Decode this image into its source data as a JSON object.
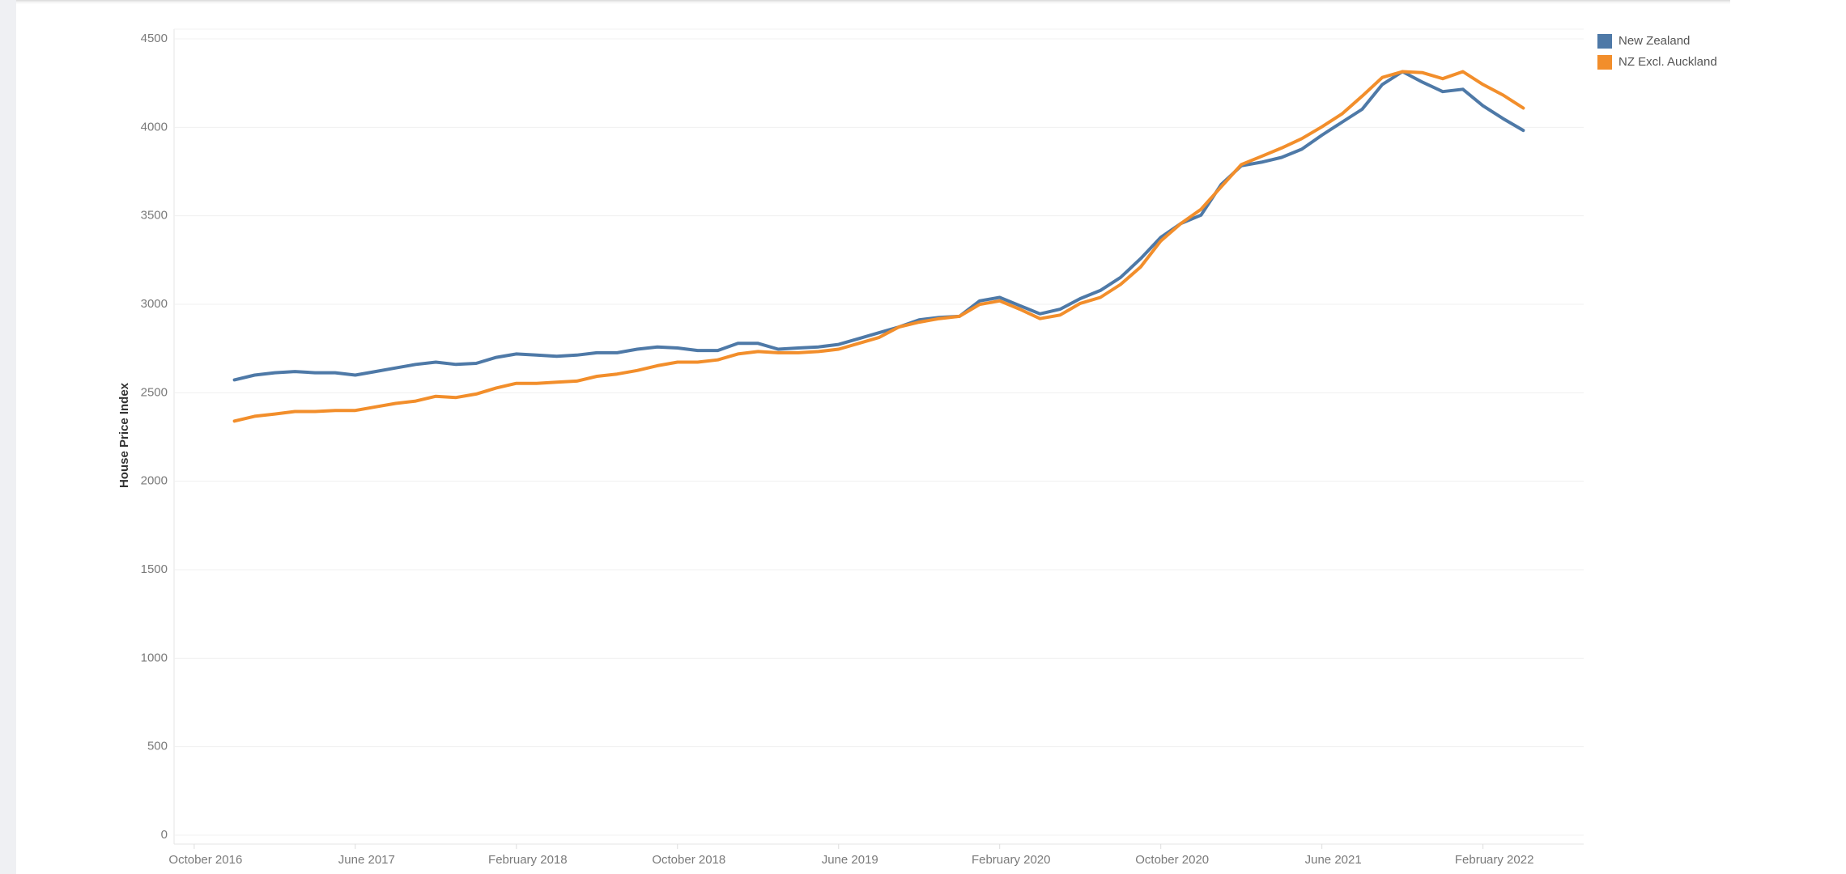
{
  "chart_data": {
    "type": "line",
    "y_label": "House Price Index",
    "x": [
      "2016-12",
      "2017-01",
      "2017-02",
      "2017-03",
      "2017-04",
      "2017-05",
      "2017-06",
      "2017-07",
      "2017-08",
      "2017-09",
      "2017-10",
      "2017-11",
      "2017-12",
      "2018-01",
      "2018-02",
      "2018-03",
      "2018-04",
      "2018-05",
      "2018-06",
      "2018-07",
      "2018-08",
      "2018-09",
      "2018-10",
      "2018-11",
      "2018-12",
      "2019-01",
      "2019-02",
      "2019-03",
      "2019-04",
      "2019-05",
      "2019-06",
      "2019-07",
      "2019-08",
      "2019-09",
      "2019-10",
      "2019-11",
      "2019-12",
      "2020-01",
      "2020-02",
      "2020-03",
      "2020-04",
      "2020-05",
      "2020-06",
      "2020-07",
      "2020-08",
      "2020-09",
      "2020-10",
      "2020-11",
      "2020-12",
      "2021-01",
      "2021-02",
      "2021-03",
      "2021-04",
      "2021-05",
      "2021-06",
      "2021-07",
      "2021-08",
      "2021-09",
      "2021-10",
      "2021-11",
      "2021-12",
      "2022-01",
      "2022-02",
      "2022-03",
      "2022-04"
    ],
    "series": [
      {
        "name": "New Zealand",
        "color": "#4e79a7",
        "values": [
          2573,
          2600,
          2613,
          2620,
          2613,
          2613,
          2600,
          2620,
          2640,
          2660,
          2673,
          2660,
          2666,
          2700,
          2719,
          2713,
          2706,
          2713,
          2726,
          2726,
          2746,
          2759,
          2753,
          2739,
          2739,
          2779,
          2779,
          2746,
          2753,
          2759,
          2773,
          2806,
          2839,
          2872,
          2912,
          2926,
          2932,
          3019,
          3039,
          2992,
          2946,
          2972,
          3032,
          3078,
          3152,
          3258,
          3378,
          3457,
          3504,
          3677,
          3783,
          3803,
          3830,
          3876,
          3956,
          4029,
          4102,
          4242,
          4315,
          4255,
          4202,
          4215,
          4122,
          4049,
          3983
        ]
      },
      {
        "name": "NZ Excl. Auckland",
        "color": "#f28e2b",
        "values": [
          2340,
          2367,
          2380,
          2394,
          2394,
          2400,
          2400,
          2420,
          2440,
          2453,
          2480,
          2473,
          2493,
          2527,
          2553,
          2553,
          2560,
          2566,
          2593,
          2606,
          2626,
          2653,
          2673,
          2673,
          2686,
          2719,
          2733,
          2726,
          2726,
          2733,
          2746,
          2779,
          2812,
          2872,
          2899,
          2919,
          2932,
          2999,
          3019,
          2972,
          2919,
          2939,
          3005,
          3039,
          3112,
          3211,
          3358,
          3457,
          3537,
          3664,
          3790,
          3836,
          3883,
          3936,
          4003,
          4076,
          4176,
          4282,
          4315,
          4309,
          4275,
          4315,
          4242,
          4182,
          4109
        ]
      }
    ],
    "xlim": [
      "2016-09",
      "2022-07"
    ],
    "xticks": [
      {
        "value": "2016-10",
        "label": "October 2016"
      },
      {
        "value": "2017-06",
        "label": "June 2017"
      },
      {
        "value": "2018-02",
        "label": "February 2018"
      },
      {
        "value": "2018-10",
        "label": "October 2018"
      },
      {
        "value": "2019-06",
        "label": "June 2019"
      },
      {
        "value": "2020-02",
        "label": "February 2020"
      },
      {
        "value": "2020-10",
        "label": "October 2020"
      },
      {
        "value": "2021-06",
        "label": "June 2021"
      },
      {
        "value": "2022-02",
        "label": "February 2022"
      }
    ],
    "ylim": [
      0,
      4500
    ],
    "yticks": [
      0,
      500,
      1000,
      1500,
      2000,
      2500,
      3000,
      3500,
      4000,
      4500
    ],
    "grid": true,
    "legend": "top-right"
  }
}
